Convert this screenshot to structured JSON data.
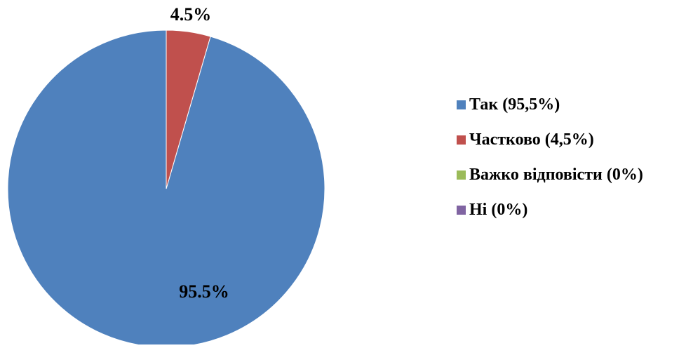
{
  "chart_data": {
    "type": "pie",
    "title": "",
    "slices": [
      {
        "label": "Так (95,5%)",
        "value": 95.5,
        "data_label": "95.5%",
        "color": "#4F81BD"
      },
      {
        "label": "Частково (4,5%)",
        "value": 4.5,
        "data_label": "4.5%",
        "color": "#C0504D"
      },
      {
        "label": "Важко відповісти (0%)",
        "value": 0,
        "data_label": "",
        "color": "#9BBB59"
      },
      {
        "label": "Ні (0%)",
        "value": 0,
        "data_label": "",
        "color": "#8064A2"
      }
    ],
    "legend_position": "right"
  }
}
